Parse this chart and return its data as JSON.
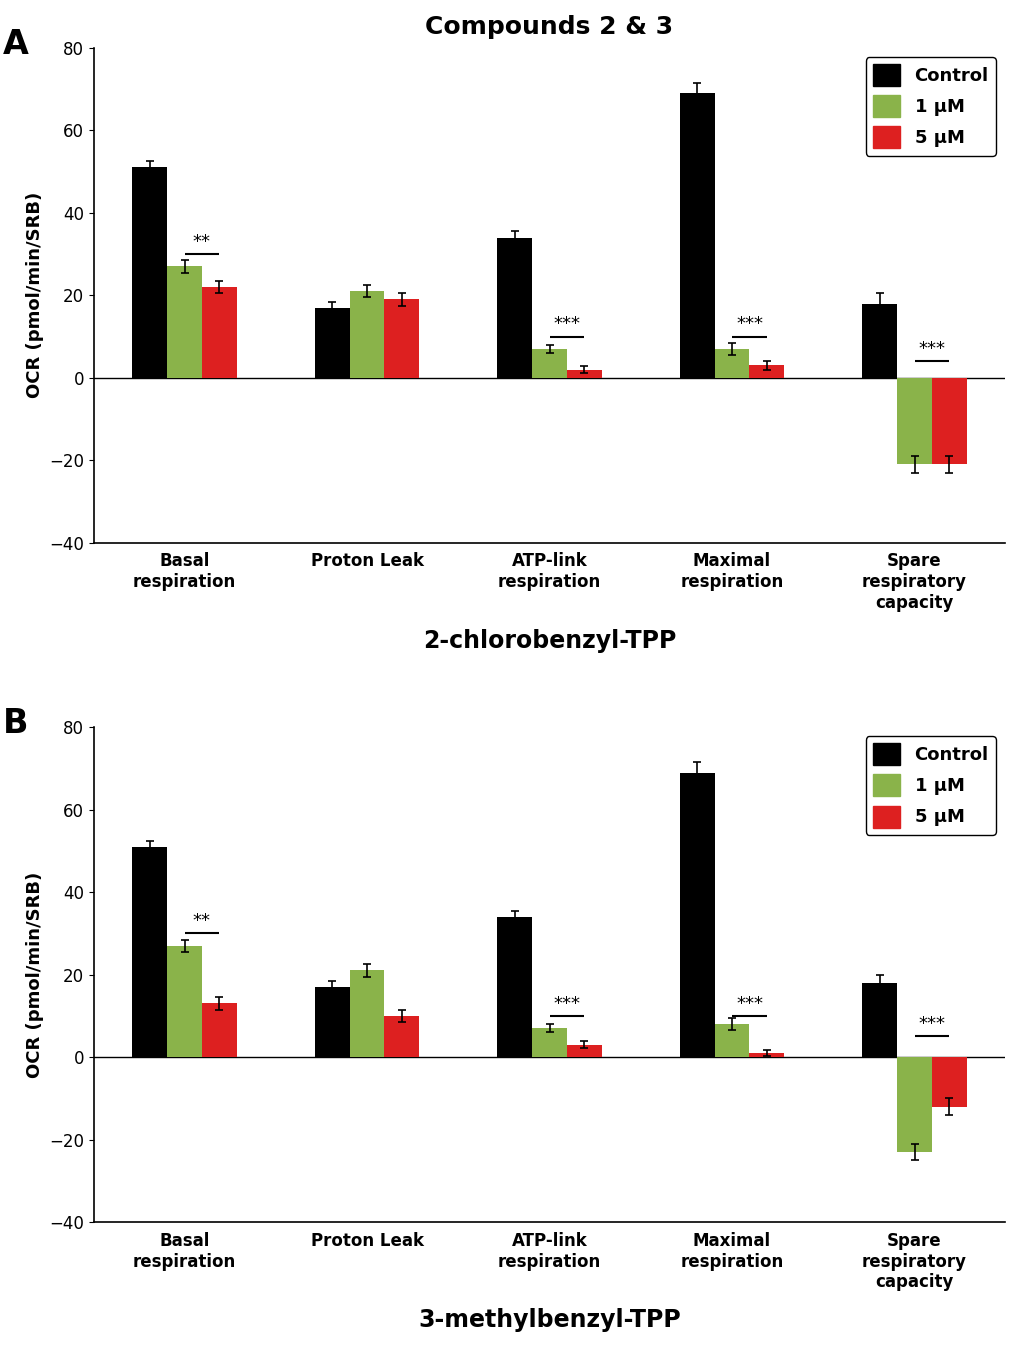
{
  "title": "Compounds 2 & 3",
  "panel_A_subtitle": "2-chlorobenzyl-TPP",
  "panel_B_subtitle": "3-methylbenzyl-TPP",
  "categories": [
    "Basal\nrespiration",
    "Proton Leak",
    "ATP-link\nrespiration",
    "Maximal\nrespiration",
    "Spare\nrespiratory\ncapacity"
  ],
  "ylabel": "OCR (pmol/min/SRB)",
  "ylim": [
    -40,
    80
  ],
  "yticks": [
    -40,
    -20,
    0,
    20,
    40,
    60,
    80
  ],
  "colors": {
    "control": "#000000",
    "1uM": "#8ab34a",
    "5uM": "#dd2020"
  },
  "legend_labels": [
    "Control",
    "1 μM",
    "5 μM"
  ],
  "panel_A": {
    "control": [
      51,
      17,
      34,
      69,
      18
    ],
    "control_err": [
      1.5,
      1.5,
      1.5,
      2.5,
      2.5
    ],
    "uM1": [
      27,
      21,
      7,
      7,
      -21
    ],
    "uM1_err": [
      1.5,
      1.5,
      1.0,
      1.5,
      2.0
    ],
    "uM5": [
      22,
      19,
      2,
      3,
      -21
    ],
    "uM5_err": [
      1.5,
      1.5,
      0.8,
      1.0,
      2.0
    ],
    "sig_labels": [
      "**",
      null,
      "***",
      "***",
      "***"
    ],
    "sig_y": [
      30,
      null,
      10,
      10,
      4
    ]
  },
  "panel_B": {
    "control": [
      51,
      17,
      34,
      69,
      18
    ],
    "control_err": [
      1.5,
      1.5,
      1.5,
      2.5,
      2.0
    ],
    "uM1": [
      27,
      21,
      7,
      8,
      -23
    ],
    "uM1_err": [
      1.5,
      1.5,
      1.0,
      1.5,
      2.0
    ],
    "uM5": [
      13,
      10,
      3,
      1,
      -12
    ],
    "uM5_err": [
      1.5,
      1.5,
      0.8,
      0.8,
      2.0
    ],
    "sig_labels": [
      "**",
      null,
      "***",
      "***",
      "***"
    ],
    "sig_y": [
      30,
      null,
      10,
      10,
      5
    ]
  },
  "bar_width": 0.22,
  "group_centers": [
    0,
    1,
    2,
    3,
    4
  ],
  "group_scale": 1.15,
  "background_color": "#ffffff",
  "panel_label_fontsize": 24,
  "title_fontsize": 18,
  "subtitle_fontsize": 17,
  "axis_label_fontsize": 13,
  "tick_fontsize": 12,
  "legend_fontsize": 13,
  "sig_fontsize": 13
}
